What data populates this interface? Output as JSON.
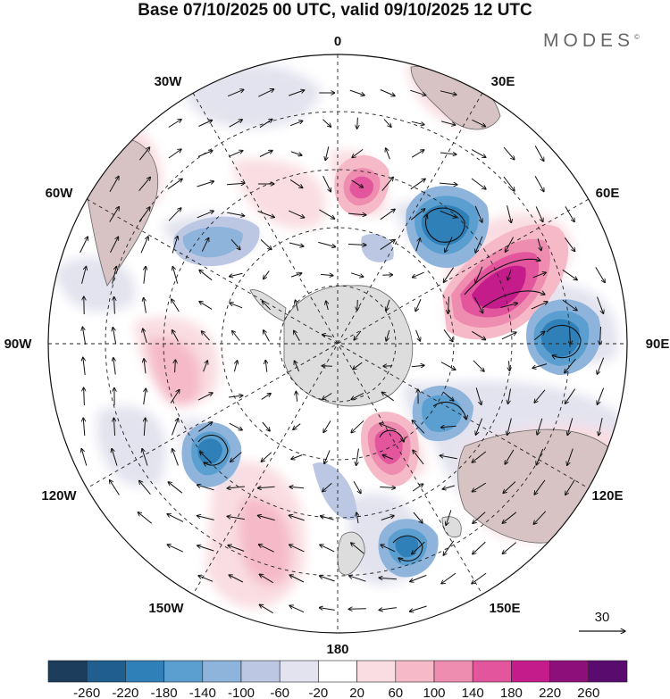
{
  "title": "Base 07/10/2025 00 UTC, valid 09/10/2025 12 UTC",
  "brand": "MODES",
  "brand_mark": "©",
  "longitude_labels": [
    {
      "text": "0",
      "name": "label-0"
    },
    {
      "text": "30E",
      "name": "label-30e"
    },
    {
      "text": "60E",
      "name": "label-60e"
    },
    {
      "text": "90E",
      "name": "label-90e"
    },
    {
      "text": "120E",
      "name": "label-120e"
    },
    {
      "text": "150E",
      "name": "label-150e"
    },
    {
      "text": "180",
      "name": "label-180"
    },
    {
      "text": "150W",
      "name": "label-150w"
    },
    {
      "text": "120W",
      "name": "label-120w"
    },
    {
      "text": "90W",
      "name": "label-90w"
    },
    {
      "text": "60W",
      "name": "label-60w"
    },
    {
      "text": "30W",
      "name": "label-30w"
    }
  ],
  "reference_vector": "30",
  "colorbar": {
    "ticks": [
      "-260",
      "-220",
      "-180",
      "-140",
      "-100",
      "-60",
      "-20",
      "20",
      "60",
      "100",
      "140",
      "180",
      "220",
      "260"
    ],
    "colors": [
      "#1d3d5c",
      "#1f5e8f",
      "#2f7fb8",
      "#5b9fd0",
      "#8fb4dc",
      "#bcc8e3",
      "#e3e3ef",
      "#ffffff",
      "#f9dde2",
      "#f5b9c8",
      "#ee8db0",
      "#e3559c",
      "#c41c8a",
      "#8d0f7a",
      "#5a0c6e"
    ]
  },
  "map": {
    "projection": "south-polar-stereographic",
    "anomalies": [
      {
        "name": "anomaly-pos-60e",
        "value": 220,
        "color": "#c41c8a"
      },
      {
        "name": "anomaly-neg-30e",
        "value": -180,
        "color": "#2f7fb8"
      },
      {
        "name": "anomaly-neg-90e",
        "value": -180,
        "color": "#2f7fb8"
      },
      {
        "name": "anomaly-pos-10e",
        "value": 140,
        "color": "#e3559c"
      },
      {
        "name": "anomaly-pos-130e",
        "value": 180,
        "color": "#e3559c"
      },
      {
        "name": "anomaly-neg-110e",
        "value": -140,
        "color": "#5b9fd0"
      },
      {
        "name": "anomaly-neg-160e",
        "value": -140,
        "color": "#5b9fd0"
      },
      {
        "name": "anomaly-neg-120w",
        "value": -140,
        "color": "#5b9fd0"
      },
      {
        "name": "anomaly-neg-60w",
        "value": -100,
        "color": "#8fb4dc"
      }
    ]
  }
}
